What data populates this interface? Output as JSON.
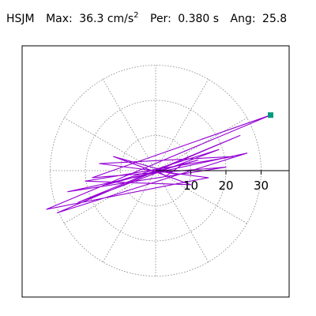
{
  "header": {
    "station": "HSJM",
    "max_label": "Max:",
    "max_value": "36.3 cm/s",
    "max_exp": "2",
    "per_label": "Per:",
    "per_value": "0.380 s",
    "ang_label": "Ang:",
    "ang_value": "25.8"
  },
  "colors": {
    "trace": "#9400d3",
    "marker": "#009980",
    "grid": "#808080",
    "axis": "#000000"
  },
  "chart_data": {
    "type": "scatter",
    "polar": true,
    "title": "",
    "radial_ticks": [
      10,
      20,
      30
    ],
    "radial_max": 36.3,
    "peak_angle_deg": 25.8,
    "spoke_step_deg": 30,
    "grid": true,
    "trace_series": [
      {
        "x": 0,
        "y": 0
      },
      {
        "x": 3,
        "y": -1.5
      },
      {
        "x": 8,
        "y": 2
      },
      {
        "x": -6,
        "y": -2
      },
      {
        "x": 12,
        "y": 3
      },
      {
        "x": -14,
        "y": -4
      },
      {
        "x": 18,
        "y": 6
      },
      {
        "x": -22,
        "y": -9
      },
      {
        "x": 24,
        "y": 10
      },
      {
        "x": -28,
        "y": -12
      },
      {
        "x": 26,
        "y": 5
      },
      {
        "x": -25,
        "y": -6
      },
      {
        "x": 20,
        "y": 1
      },
      {
        "x": -18,
        "y": -2
      },
      {
        "x": 32.7,
        "y": 15.8
      },
      {
        "x": -31,
        "y": -11
      },
      {
        "x": 15,
        "y": -2
      },
      {
        "x": -16,
        "y": 2
      },
      {
        "x": 22,
        "y": 4
      },
      {
        "x": -20,
        "y": -3
      },
      {
        "x": 10,
        "y": -4
      },
      {
        "x": -12,
        "y": 4
      },
      {
        "x": 6,
        "y": -1
      },
      {
        "x": 0,
        "y": 0
      }
    ],
    "peak_point": {
      "x": 32.7,
      "y": 15.8
    }
  }
}
